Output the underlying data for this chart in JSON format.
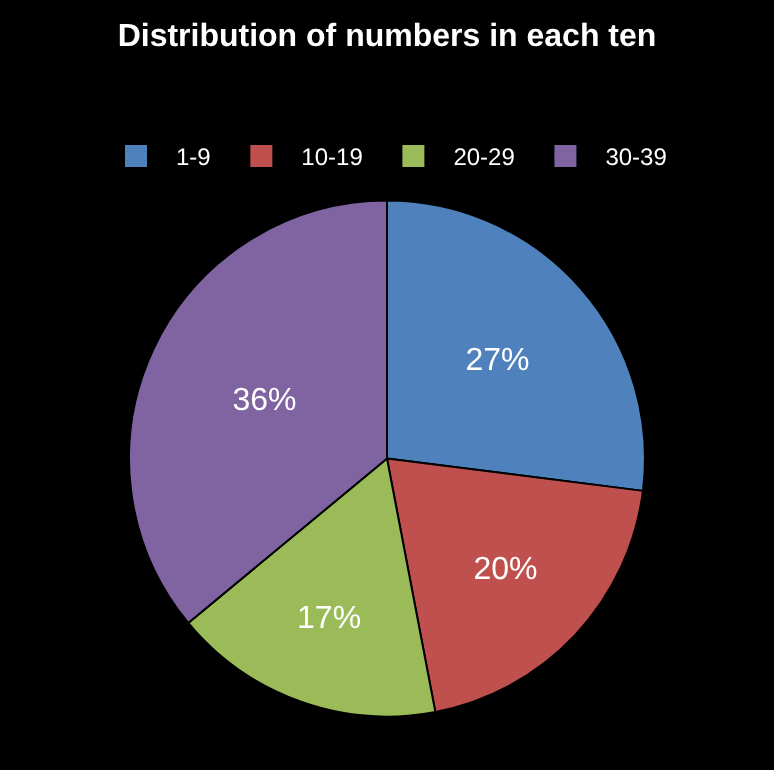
{
  "chart_data": {
    "type": "pie",
    "title": "Distribution of numbers in each ten",
    "categories": [
      "1-9",
      "10-19",
      "20-29",
      "30-39"
    ],
    "values": [
      27,
      20,
      17,
      36
    ],
    "value_labels": [
      "27%",
      "20%",
      "17%",
      "36%"
    ],
    "colors": [
      "#4f81bd",
      "#c0504d",
      "#9bbb59",
      "#8064a2"
    ],
    "legend": "top"
  }
}
